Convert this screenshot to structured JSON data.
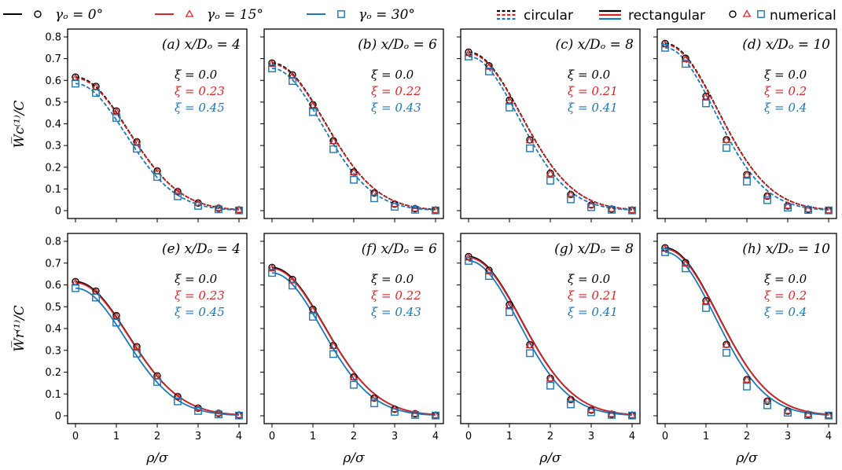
{
  "legend": {
    "series_labels": [
      "γₒ = 0°",
      "γₒ = 15°",
      "γₒ = 30°"
    ],
    "circular_label": "circular",
    "rectangular_label": "rectangular",
    "numerical_label": "numerical"
  },
  "colors": {
    "g0": "#000000",
    "g15": "#d62728",
    "g30": "#1f77b4"
  },
  "ylabel_top": "W̅c⁽¹⁾/C",
  "ylabel_bottom": "W̅r⁽¹⁾/C",
  "xlabel": "ρ/σ",
  "x_ticks": [
    "0",
    "1",
    "2",
    "3",
    "4"
  ],
  "y_ticks": [
    "0",
    "0.1",
    "0.2",
    "0.3",
    "0.4",
    "0.5",
    "0.6",
    "0.7",
    "0.8"
  ],
  "chart_data": [
    {
      "type": "line",
      "row": "top",
      "line_style": "dashed",
      "title": "(a) x/Dₒ = 4",
      "xlim": [
        0,
        4
      ],
      "ylim": [
        0,
        0.8
      ],
      "peaks": [
        0.615,
        0.61,
        0.585
      ],
      "xi_labels": [
        "ξ = 0.0",
        "ξ = 0.23",
        "ξ = 0.45"
      ],
      "numerical_x": [
        0,
        0.5,
        1,
        1.5,
        2,
        2.5,
        3,
        3.5,
        4
      ],
      "series": [
        {
          "values": [
            0.615,
            0.572,
            0.459,
            0.317,
            0.183,
            0.088,
            0.035,
            0.011,
            0.003
          ]
        },
        {
          "values": [
            0.61,
            0.568,
            0.455,
            0.314,
            0.18,
            0.087,
            0.035,
            0.011,
            0.003
          ]
        },
        {
          "values": [
            0.585,
            0.542,
            0.427,
            0.285,
            0.155,
            0.066,
            0.022,
            0.006,
            0.001
          ]
        }
      ]
    },
    {
      "type": "line",
      "row": "top",
      "line_style": "dashed",
      "title": "(b) x/Dₒ = 6",
      "xlim": [
        0,
        4
      ],
      "ylim": [
        0,
        0.8
      ],
      "peaks": [
        0.68,
        0.675,
        0.655
      ],
      "xi_labels": [
        "ξ = 0.0",
        "ξ = 0.22",
        "ξ = 0.43"
      ],
      "numerical_x": [
        0,
        0.5,
        1,
        1.5,
        2,
        2.5,
        3,
        3.5,
        4
      ],
      "series": [
        {
          "values": [
            0.68,
            0.625,
            0.488,
            0.322,
            0.178,
            0.081,
            0.03,
            0.009,
            0.002
          ]
        },
        {
          "values": [
            0.675,
            0.62,
            0.484,
            0.319,
            0.176,
            0.08,
            0.03,
            0.009,
            0.002
          ]
        },
        {
          "values": [
            0.655,
            0.597,
            0.454,
            0.283,
            0.142,
            0.057,
            0.018,
            0.004,
            0.001
          ]
        }
      ]
    },
    {
      "type": "line",
      "row": "top",
      "line_style": "dashed",
      "title": "(c) x/Dₒ = 8",
      "xlim": [
        0,
        4
      ],
      "ylim": [
        0,
        0.8
      ],
      "peaks": [
        0.73,
        0.725,
        0.71
      ],
      "xi_labels": [
        "ξ = 0.0",
        "ξ = 0.21",
        "ξ = 0.41"
      ],
      "numerical_x": [
        0,
        0.5,
        1,
        1.5,
        2,
        2.5,
        3,
        3.5,
        4
      ],
      "series": [
        {
          "values": [
            0.73,
            0.667,
            0.509,
            0.326,
            0.172,
            0.074,
            0.026,
            0.007,
            0.002
          ]
        },
        {
          "values": [
            0.725,
            0.662,
            0.505,
            0.323,
            0.17,
            0.073,
            0.026,
            0.007,
            0.002
          ]
        },
        {
          "values": [
            0.71,
            0.641,
            0.475,
            0.287,
            0.138,
            0.052,
            0.016,
            0.004,
            0.001
          ]
        }
      ]
    },
    {
      "type": "line",
      "row": "top",
      "line_style": "dashed",
      "title": "(d) x/Dₒ = 10",
      "xlim": [
        0,
        4
      ],
      "ylim": [
        0,
        0.8
      ],
      "peaks": [
        0.77,
        0.765,
        0.75
      ],
      "xi_labels": [
        "ξ = 0.0",
        "ξ = 0.2",
        "ξ = 0.4"
      ],
      "numerical_x": [
        0,
        0.5,
        1,
        1.5,
        2,
        2.5,
        3,
        3.5,
        4
      ],
      "series": [
        {
          "values": [
            0.77,
            0.702,
            0.527,
            0.327,
            0.166,
            0.067,
            0.022,
            0.006,
            0.001
          ]
        },
        {
          "values": [
            0.765,
            0.697,
            0.523,
            0.325,
            0.165,
            0.067,
            0.022,
            0.006,
            0.001
          ]
        },
        {
          "values": [
            0.75,
            0.676,
            0.494,
            0.289,
            0.134,
            0.048,
            0.014,
            0.003,
            0.001
          ]
        }
      ]
    },
    {
      "type": "line",
      "row": "bottom",
      "line_style": "solid",
      "title": "(e) x/Dₒ = 4",
      "xlim": [
        0,
        4
      ],
      "ylim": [
        0,
        0.8
      ],
      "peaks": [
        0.615,
        0.61,
        0.585
      ],
      "xi_labels": [
        "ξ = 0.0",
        "ξ = 0.23",
        "ξ = 0.45"
      ],
      "numerical_x": [
        0,
        0.5,
        1,
        1.5,
        2,
        2.5,
        3,
        3.5,
        4
      ],
      "series": [
        {
          "values": [
            0.615,
            0.572,
            0.459,
            0.317,
            0.183,
            0.088,
            0.035,
            0.011,
            0.003
          ]
        },
        {
          "values": [
            0.61,
            0.568,
            0.455,
            0.314,
            0.18,
            0.087,
            0.035,
            0.011,
            0.003
          ]
        },
        {
          "values": [
            0.585,
            0.542,
            0.427,
            0.285,
            0.155,
            0.066,
            0.022,
            0.006,
            0.001
          ]
        }
      ]
    },
    {
      "type": "line",
      "row": "bottom",
      "line_style": "solid",
      "title": "(f) x/Dₒ = 6",
      "xlim": [
        0,
        4
      ],
      "ylim": [
        0,
        0.8
      ],
      "peaks": [
        0.68,
        0.675,
        0.655
      ],
      "xi_labels": [
        "ξ = 0.0",
        "ξ = 0.22",
        "ξ = 0.43"
      ],
      "numerical_x": [
        0,
        0.5,
        1,
        1.5,
        2,
        2.5,
        3,
        3.5,
        4
      ],
      "series": [
        {
          "values": [
            0.68,
            0.625,
            0.488,
            0.322,
            0.178,
            0.081,
            0.03,
            0.009,
            0.002
          ]
        },
        {
          "values": [
            0.675,
            0.62,
            0.484,
            0.319,
            0.176,
            0.08,
            0.03,
            0.009,
            0.002
          ]
        },
        {
          "values": [
            0.655,
            0.597,
            0.454,
            0.283,
            0.142,
            0.057,
            0.018,
            0.004,
            0.001
          ]
        }
      ]
    },
    {
      "type": "line",
      "row": "bottom",
      "line_style": "solid",
      "title": "(g) x/Dₒ = 8",
      "xlim": [
        0,
        4
      ],
      "ylim": [
        0,
        0.8
      ],
      "peaks": [
        0.73,
        0.725,
        0.71
      ],
      "xi_labels": [
        "ξ = 0.0",
        "ξ = 0.21",
        "ξ = 0.41"
      ],
      "numerical_x": [
        0,
        0.5,
        1,
        1.5,
        2,
        2.5,
        3,
        3.5,
        4
      ],
      "series": [
        {
          "values": [
            0.73,
            0.667,
            0.509,
            0.326,
            0.172,
            0.074,
            0.026,
            0.007,
            0.002
          ]
        },
        {
          "values": [
            0.725,
            0.662,
            0.505,
            0.323,
            0.17,
            0.073,
            0.026,
            0.007,
            0.002
          ]
        },
        {
          "values": [
            0.71,
            0.641,
            0.475,
            0.287,
            0.138,
            0.052,
            0.016,
            0.004,
            0.001
          ]
        }
      ]
    },
    {
      "type": "line",
      "row": "bottom",
      "line_style": "solid",
      "title": "(h) x/Dₒ = 10",
      "xlim": [
        0,
        4
      ],
      "ylim": [
        0,
        0.8
      ],
      "peaks": [
        0.77,
        0.765,
        0.75
      ],
      "xi_labels": [
        "ξ = 0.0",
        "ξ = 0.2",
        "ξ = 0.4"
      ],
      "numerical_x": [
        0,
        0.5,
        1,
        1.5,
        2,
        2.5,
        3,
        3.5,
        4
      ],
      "series": [
        {
          "values": [
            0.77,
            0.702,
            0.527,
            0.327,
            0.166,
            0.067,
            0.022,
            0.006,
            0.001
          ]
        },
        {
          "values": [
            0.765,
            0.697,
            0.523,
            0.325,
            0.165,
            0.067,
            0.022,
            0.006,
            0.001
          ]
        },
        {
          "values": [
            0.75,
            0.676,
            0.494,
            0.289,
            0.134,
            0.048,
            0.014,
            0.003,
            0.001
          ]
        }
      ]
    }
  ]
}
